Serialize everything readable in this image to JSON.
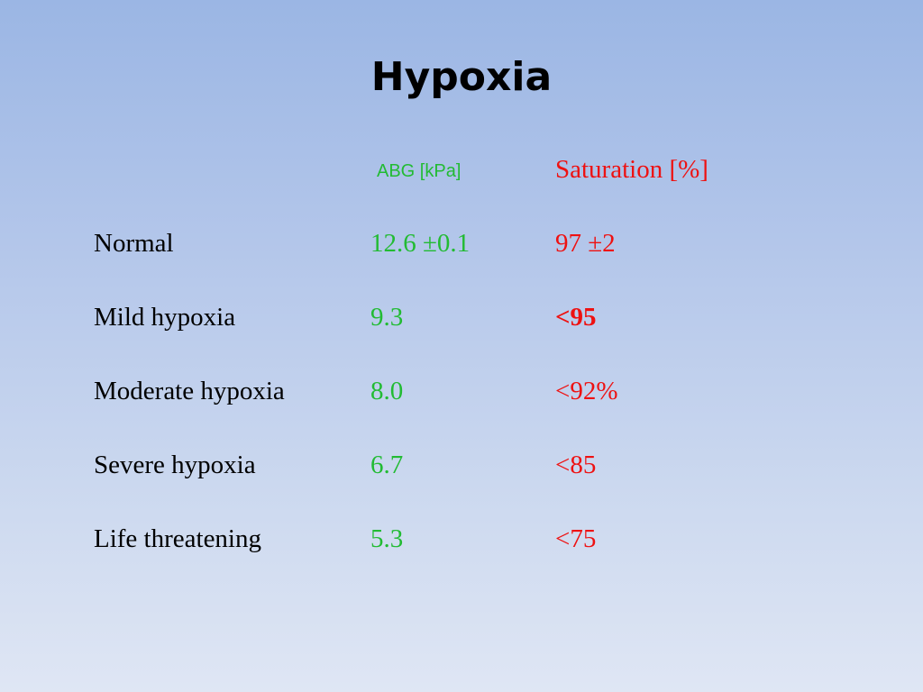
{
  "slide": {
    "title": "Hypoxia"
  },
  "table": {
    "headers": {
      "abg": "ABG [kPa]",
      "saturation": "Saturation [%]"
    },
    "rows": [
      {
        "label": "Normal",
        "abg": "12.6 ±0.1",
        "saturation": "97 ±2"
      },
      {
        "label": "Mild hypoxia",
        "abg": "9.3",
        "saturation": "<95"
      },
      {
        "label": "Moderate hypoxia",
        "abg": "8.0",
        "saturation": "<92%"
      },
      {
        "label": "Severe hypoxia",
        "abg": "6.7",
        "saturation": "<85"
      },
      {
        "label": "Life threatening",
        "abg": "5.3",
        "saturation": "<75"
      }
    ]
  },
  "colors": {
    "abg_text": "#22bb33",
    "saturation_text": "#ee1111",
    "background_top": "#9bb6e4",
    "background_bottom": "#dfe6f4"
  }
}
